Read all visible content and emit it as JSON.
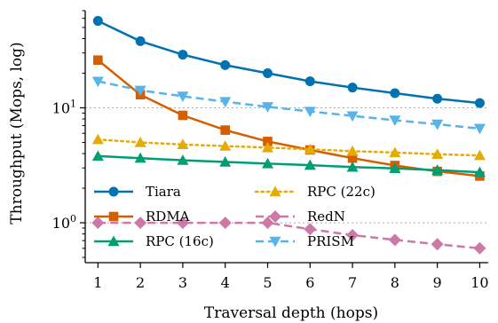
{
  "chart_data": {
    "type": "line",
    "xlabel": "Traversal depth (hops)",
    "ylabel": "Throughput (Mops, log)",
    "x": [
      1,
      2,
      3,
      4,
      5,
      6,
      7,
      8,
      9,
      10
    ],
    "yscale": "log",
    "ylim": [
      0.45,
      70
    ],
    "xlim": [
      0.7,
      10.2
    ],
    "grid": "major gridlines at 10^0 and 10^1 only, dotted",
    "y_tick_labels": [
      {
        "value": 1,
        "base": "10",
        "exp": "0"
      },
      {
        "value": 10,
        "base": "10",
        "exp": "1"
      }
    ],
    "legend": "lower-left, two columns",
    "series": [
      {
        "name": "Tiara",
        "color": "#0072B2",
        "marker": "circle",
        "dash": "solid",
        "values": [
          57,
          38,
          29,
          23.5,
          20,
          17,
          15,
          13.4,
          12,
          11
        ]
      },
      {
        "name": "RDMA",
        "color": "#D55E00",
        "marker": "square",
        "dash": "solid",
        "values": [
          26,
          13,
          8.6,
          6.4,
          5.1,
          4.3,
          3.65,
          3.15,
          2.8,
          2.55
        ]
      },
      {
        "name": "RPC (16c)",
        "color": "#009E73",
        "marker": "triangle-up",
        "dash": "solid",
        "values": [
          3.8,
          3.65,
          3.5,
          3.38,
          3.27,
          3.17,
          3.05,
          2.97,
          2.87,
          2.75
        ]
      },
      {
        "name": "RPC (22c)",
        "color": "#E6AB02",
        "marker": "triangle-up",
        "dash": "dotted",
        "values": [
          5.3,
          5.0,
          4.8,
          4.65,
          4.5,
          4.35,
          4.2,
          4.08,
          3.95,
          3.85
        ]
      },
      {
        "name": "RedN",
        "color": "#CC79A7",
        "marker": "diamond",
        "dash": "dashed",
        "values": [
          1.0,
          1.0,
          1.0,
          1.0,
          1.0,
          0.88,
          0.78,
          0.71,
          0.65,
          0.6
        ]
      },
      {
        "name": "PRISM",
        "color": "#56B4E9",
        "marker": "triangle-down",
        "dash": "dashed",
        "values": [
          17,
          14.2,
          12.6,
          11.3,
          10.2,
          9.3,
          8.5,
          7.8,
          7.2,
          6.6
        ]
      }
    ]
  }
}
